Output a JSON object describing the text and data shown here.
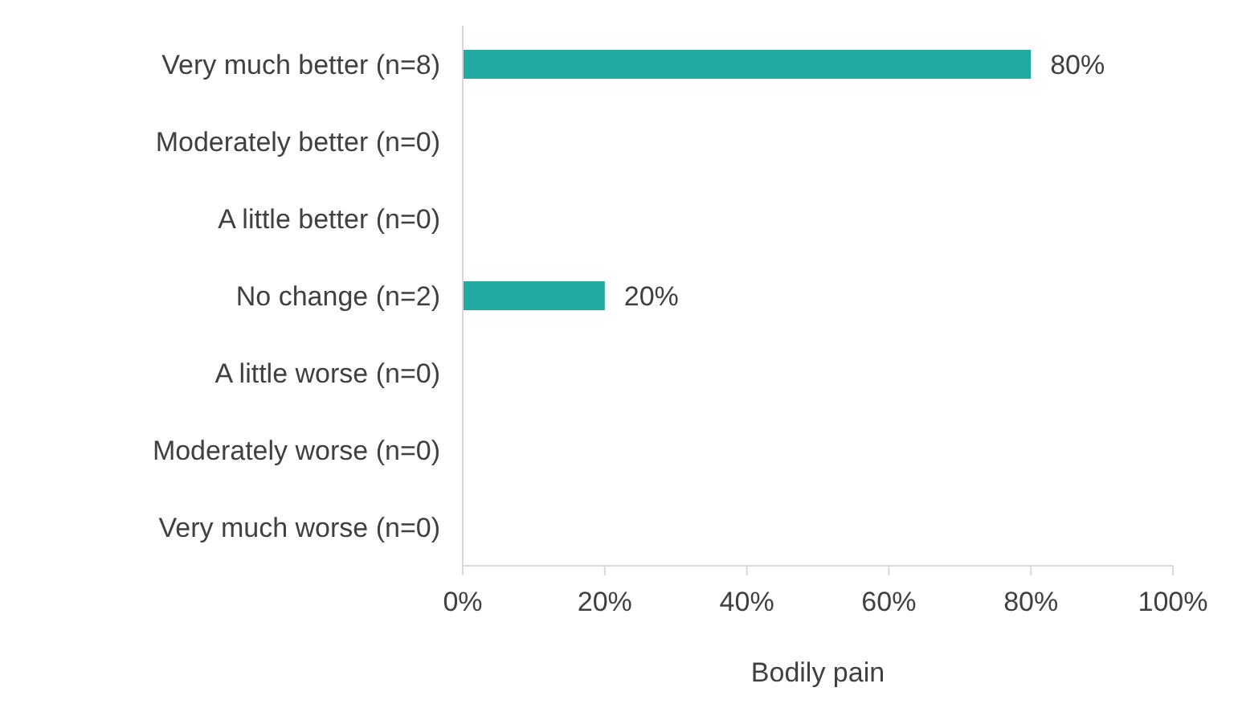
{
  "chart_data": {
    "type": "bar",
    "orientation": "horizontal",
    "xlabel": "Bodily pain",
    "categories": [
      "Very much better (n=8)",
      "Moderately better (n=0)",
      "A little better (n=0)",
      "No change (n=2)",
      "A little worse (n=0)",
      "Moderately worse (n=0)",
      "Very much worse (n=0)"
    ],
    "values": [
      80,
      0,
      0,
      20,
      0,
      0,
      0
    ],
    "value_labels": [
      "80%",
      null,
      null,
      "20%",
      null,
      null,
      null
    ],
    "color": "#20aaa3",
    "xlim": [
      0,
      100
    ],
    "xticks": [
      {
        "value": 0,
        "label": "0%"
      },
      {
        "value": 20,
        "label": "20%"
      },
      {
        "value": 40,
        "label": "40%"
      },
      {
        "value": 60,
        "label": "60%"
      },
      {
        "value": 80,
        "label": "80%"
      },
      {
        "value": 100,
        "label": "100%"
      }
    ],
    "grid": false,
    "legend": false
  }
}
